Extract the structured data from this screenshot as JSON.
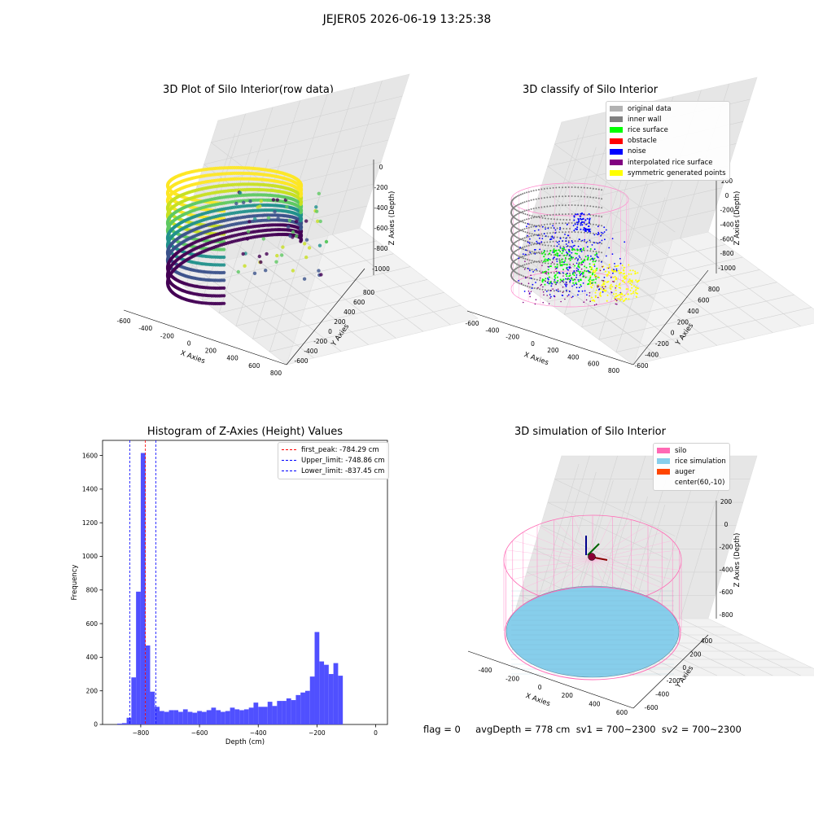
{
  "suptitle": "JEJER05 2026-06-19 13:25:38",
  "status_line": "flag = 0     avgDepth = 778 cm  sv1 = 700~2300  sv2 = 700~2300",
  "chart_data": [
    {
      "type": "scatter",
      "title": "3D Plot of Silo Interior(row data)",
      "xlabel": "X Axies",
      "ylabel": "Y Axies",
      "zlabel": "Z Axies (Depth)",
      "xticks": [
        "-600",
        "-400",
        "-200",
        "0",
        "200",
        "400",
        "600",
        "800"
      ],
      "yticks": [
        "-600",
        "-400",
        "-200",
        "0",
        "200",
        "400",
        "600",
        "800"
      ],
      "zticks": [
        "0",
        "-200",
        "-400",
        "-600",
        "-800",
        "-1000"
      ],
      "colormap": "viridis"
    },
    {
      "type": "scatter",
      "title": "3D classify of Silo Interior",
      "xlabel": "X Axies",
      "ylabel": "Y Axies",
      "zlabel": "Z Axies (Depth)",
      "xticks": [
        "-600",
        "-400",
        "-200",
        "0",
        "200",
        "400",
        "600",
        "800"
      ],
      "yticks": [
        "-600",
        "-400",
        "-200",
        "0",
        "200",
        "400",
        "600",
        "800"
      ],
      "zticks": [
        "200",
        "0",
        "-200",
        "-400",
        "-600",
        "-800",
        "-1000"
      ],
      "legend": [
        {
          "label": "original data",
          "color": "#b2b2b2"
        },
        {
          "label": "inner wall",
          "color": "#808080"
        },
        {
          "label": "rice surface",
          "color": "#00ff00"
        },
        {
          "label": "obstacle",
          "color": "#ff0000"
        },
        {
          "label": "noise",
          "color": "#0000ff"
        },
        {
          "label": "interpolated rice surface",
          "color": "#800080"
        },
        {
          "label": "symmetric generated points",
          "color": "#ffff00"
        }
      ]
    },
    {
      "type": "bar",
      "title": "Histogram of Z-Axies (Height) Values",
      "xlabel": "Depth (cm)",
      "ylabel": "Frequency",
      "xlim": [
        -930,
        40
      ],
      "ylim": [
        0,
        1690
      ],
      "xticks": [
        -800,
        -600,
        -400,
        -200,
        0
      ],
      "yticks": [
        0,
        200,
        400,
        600,
        800,
        1000,
        1200,
        1400,
        1600
      ],
      "bar_color": "#4d4dff",
      "bin_start": -880,
      "bin_width": 16,
      "values": [
        5,
        8,
        40,
        280,
        790,
        1615,
        470,
        195,
        105,
        80,
        75,
        85,
        85,
        75,
        90,
        75,
        70,
        80,
        75,
        85,
        100,
        85,
        75,
        80,
        100,
        90,
        85,
        90,
        100,
        130,
        105,
        105,
        135,
        110,
        140,
        140,
        155,
        145,
        175,
        190,
        200,
        285,
        550,
        375,
        355,
        300,
        365,
        290
      ],
      "lines": [
        {
          "label": "first_peak: -784.29 cm",
          "x": -784.29,
          "color": "#ff0000"
        },
        {
          "label": "Upper_limit: -748.86 cm",
          "x": -748.86,
          "color": "#0000ff"
        },
        {
          "label": "Lower_limit: -837.45 cm",
          "x": -837.45,
          "color": "#0000ff"
        }
      ]
    },
    {
      "type": "scatter",
      "title": "3D simulation of Silo Interior",
      "xlabel": "X Axies",
      "ylabel": "Y Axies",
      "zlabel": "Z Axies (Depth)",
      "xticks": [
        "-400",
        "-200",
        "0",
        "200",
        "400",
        "600"
      ],
      "yticks": [
        "-600",
        "-400",
        "-200",
        "0",
        "200",
        "400"
      ],
      "zticks": [
        "200",
        "0",
        "-200",
        "-400",
        "-600",
        "-800"
      ],
      "legend": [
        {
          "label": "silo",
          "color": "#ff69b4"
        },
        {
          "label": "rice simulation",
          "color": "#87ceeb"
        },
        {
          "label": "auger",
          "color": "#ff4500"
        },
        {
          "label": "center(60,-10)",
          "color": ""
        }
      ]
    }
  ]
}
